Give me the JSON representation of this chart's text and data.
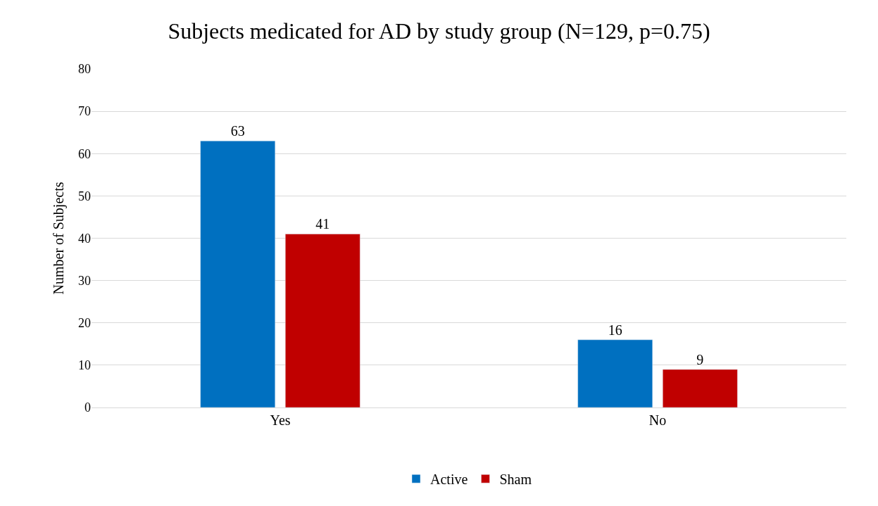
{
  "chart_data": {
    "type": "bar",
    "title": "Subjects medicated for AD by study group (N=129, p=0.75)",
    "ylabel": "Number of Subjects",
    "categories": [
      "Yes",
      "No"
    ],
    "series": [
      {
        "name": "Active",
        "color": "#0070c0",
        "values": [
          63,
          16
        ]
      },
      {
        "name": "Sham",
        "color": "#c00000",
        "values": [
          41,
          9
        ]
      }
    ],
    "ylim": [
      0,
      80
    ],
    "yticks": [
      0,
      10,
      20,
      30,
      40,
      50,
      60,
      70,
      80
    ],
    "grid": "y",
    "legend": "bottom",
    "data_labels": true
  }
}
